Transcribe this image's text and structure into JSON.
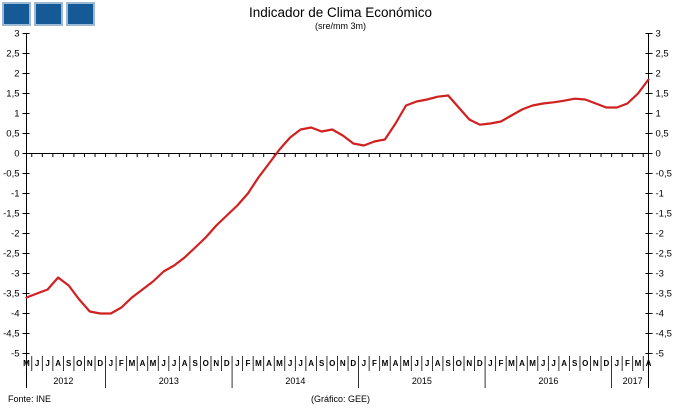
{
  "header": {
    "title": "Indicador de Clima Económico",
    "subtitle": "(sre/mm 3m)",
    "logo_squares": 3
  },
  "footer": {
    "source": "Fonte: INE",
    "credit": "(Gráfico: GEE)"
  },
  "colors": {
    "line": "#d02020",
    "axis": "#000000",
    "text": "#000000",
    "logo_fill": "#155a96",
    "logo_border": "#9db9d4",
    "background": "#ffffff"
  },
  "chart_data": {
    "type": "line",
    "title": "Indicador de Clima Económico",
    "subtitle": "(sre/mm 3m)",
    "grid": false,
    "legend": "none",
    "dual_y_axis": true,
    "zero_line": true,
    "ylim": [
      -5,
      3
    ],
    "y_tick_step": 0.5,
    "y_tick_labels": [
      "3",
      "2,5",
      "2",
      "1,5",
      "1",
      "0,5",
      "0",
      "-0,5",
      "-1",
      "-1,5",
      "-2",
      "-2,5",
      "-3",
      "-3,5",
      "-4",
      "-4,5",
      "-5"
    ],
    "x_month_labels": [
      "M",
      "J",
      "J",
      "A",
      "S",
      "O",
      "N",
      "D",
      "J",
      "F",
      "M",
      "A",
      "M",
      "J",
      "J",
      "A",
      "S",
      "O",
      "N",
      "D",
      "J",
      "F",
      "M",
      "A",
      "M",
      "J",
      "J",
      "A",
      "S",
      "O",
      "N",
      "D",
      "J",
      "F",
      "M",
      "A",
      "M",
      "J",
      "J",
      "A",
      "S",
      "O",
      "N",
      "D",
      "J",
      "F",
      "M",
      "A",
      "M",
      "J",
      "J",
      "A",
      "S",
      "O",
      "N",
      "D",
      "J",
      "F",
      "M",
      "A"
    ],
    "year_groups": [
      {
        "label": "2012",
        "months": 8
      },
      {
        "label": "2013",
        "months": 12
      },
      {
        "label": "2014",
        "months": 12
      },
      {
        "label": "2015",
        "months": 12
      },
      {
        "label": "2016",
        "months": 12
      },
      {
        "label": "2017",
        "months": 4
      }
    ],
    "series": [
      {
        "name": "Indicador de Clima Económico",
        "color": "#d02020",
        "values": [
          -3.6,
          -3.5,
          -3.4,
          -3.1,
          -3.3,
          -3.65,
          -3.95,
          -4.0,
          -4.0,
          -3.85,
          -3.6,
          -3.4,
          -3.2,
          -2.95,
          -2.8,
          -2.6,
          -2.35,
          -2.1,
          -1.8,
          -1.55,
          -1.3,
          -1.0,
          -0.6,
          -0.25,
          0.1,
          0.4,
          0.6,
          0.65,
          0.55,
          0.6,
          0.45,
          0.25,
          0.2,
          0.3,
          0.35,
          0.75,
          1.2,
          1.3,
          1.35,
          1.42,
          1.45,
          1.15,
          0.85,
          0.72,
          0.75,
          0.8,
          0.95,
          1.1,
          1.2,
          1.25,
          1.28,
          1.32,
          1.37,
          1.35,
          1.25,
          1.15,
          1.15,
          1.25,
          1.5,
          1.85
        ]
      }
    ]
  }
}
